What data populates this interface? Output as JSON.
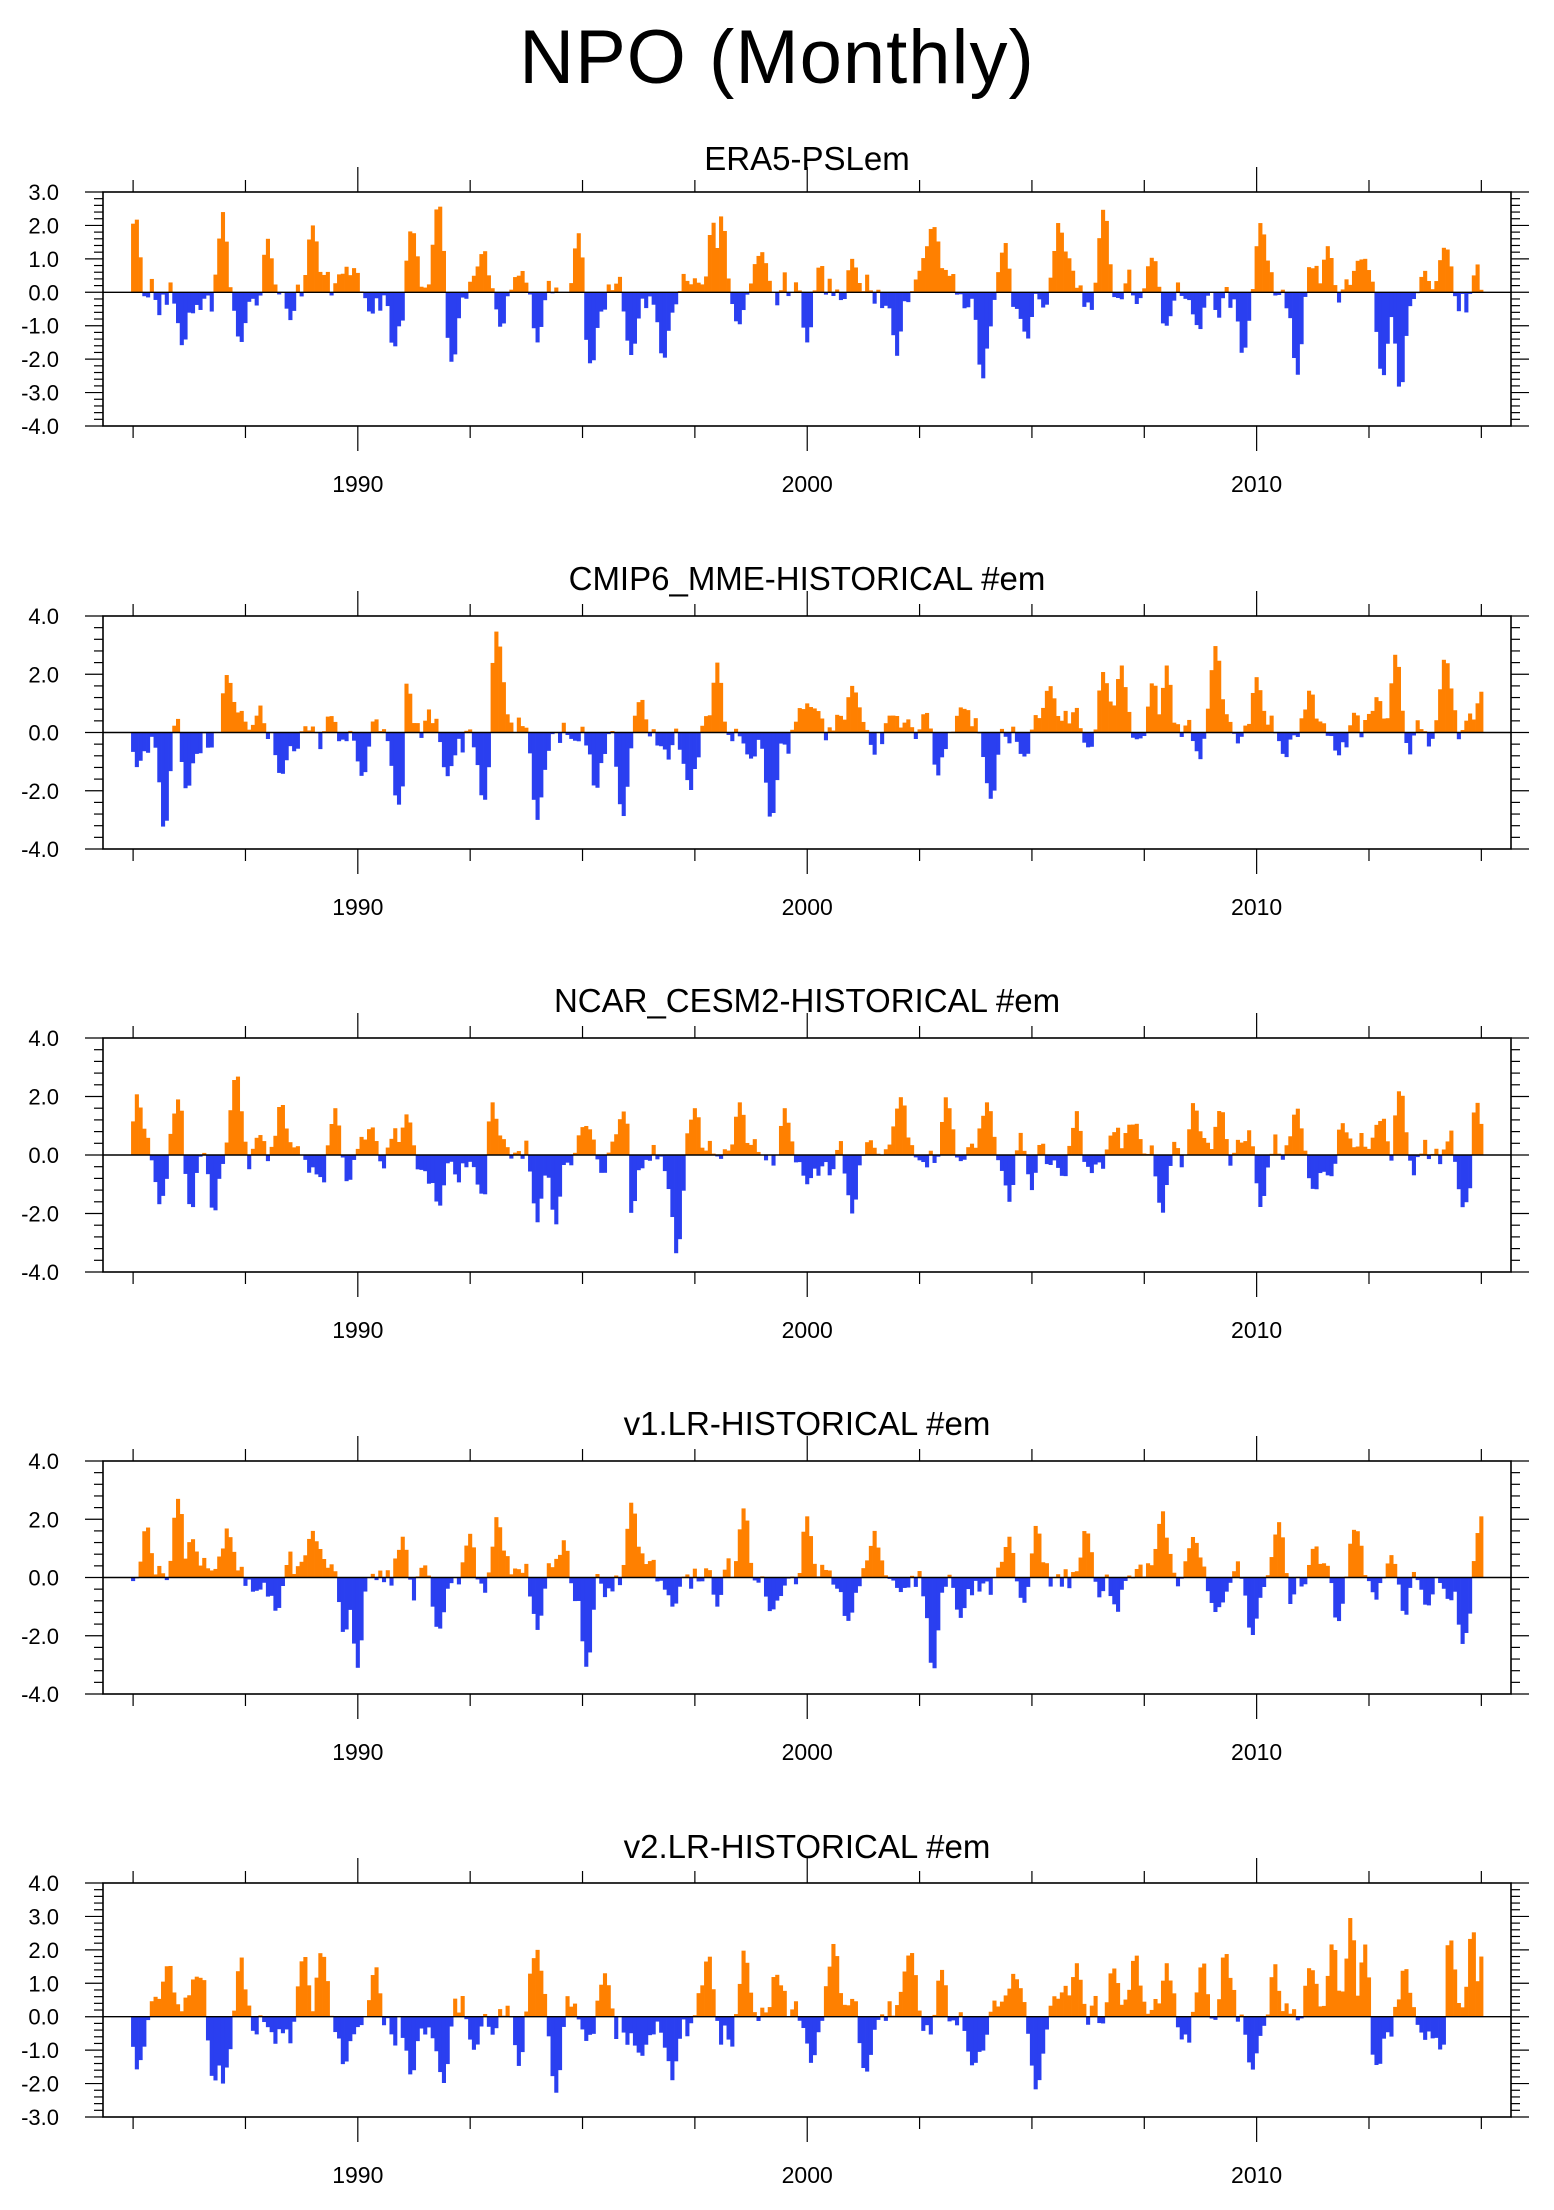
{
  "figure": {
    "title": "NPO (Monthly)",
    "colors": {
      "positive": "#ff8000",
      "negative": "#2a3ff0",
      "axis": "#000000"
    }
  },
  "chart_data": [
    {
      "type": "area",
      "title": "ERA5-PSLem",
      "x_start": 1985.0,
      "x_end": 2015.0,
      "xlim": [
        1984.33,
        2015.66
      ],
      "ylim": [
        -4.0,
        3.0
      ],
      "y_ticks": [
        3.0,
        2.0,
        1.0,
        0.0,
        -1.0,
        -2.0,
        -3.0,
        -4.0
      ],
      "y_tick_labels": [
        "3.0",
        "2.0",
        "1.0",
        "0.0",
        "-1.0",
        "-2.0",
        "-3.0",
        "-4.0"
      ],
      "x_ticks": [
        1990,
        2000,
        2010
      ],
      "x_tick_labels": [
        "1990",
        "2000",
        "2010"
      ],
      "seed": 11,
      "events": [
        [
          1985.05,
          2.3
        ],
        [
          1986.1,
          -1.6
        ],
        [
          1987.0,
          2.4
        ],
        [
          1987.4,
          -1.5
        ],
        [
          1988.0,
          1.6
        ],
        [
          1989.0,
          2.0
        ],
        [
          1990.8,
          -1.7
        ],
        [
          1991.2,
          1.9
        ],
        [
          1991.8,
          2.7
        ],
        [
          1992.1,
          -2.1
        ],
        [
          1992.8,
          1.3
        ],
        [
          1993.2,
          -1.1
        ],
        [
          1994.0,
          -1.5
        ],
        [
          1994.9,
          1.8
        ],
        [
          1995.2,
          -2.2
        ],
        [
          1996.1,
          -1.9
        ],
        [
          1996.8,
          -2.1
        ],
        [
          1997.9,
          2.1
        ],
        [
          1998.1,
          2.3
        ],
        [
          1999.0,
          1.2
        ],
        [
          2000.0,
          -1.5
        ],
        [
          2001.0,
          1.0
        ],
        [
          2002.0,
          -1.9
        ],
        [
          2002.8,
          2.0
        ],
        [
          2003.9,
          -2.6
        ],
        [
          2004.4,
          1.5
        ],
        [
          2004.9,
          -1.4
        ],
        [
          2005.6,
          2.1
        ],
        [
          2006.6,
          2.5
        ],
        [
          2007.7,
          1.1
        ],
        [
          2008.0,
          -1.0
        ],
        [
          2009.7,
          -1.9
        ],
        [
          2010.1,
          2.1
        ],
        [
          2010.9,
          -2.5
        ],
        [
          2011.6,
          1.4
        ],
        [
          2012.4,
          1.0
        ],
        [
          2012.8,
          -2.6
        ],
        [
          2013.2,
          -3.0
        ],
        [
          2014.2,
          1.4
        ]
      ]
    },
    {
      "type": "area",
      "title": "CMIP6_MME-HISTORICAL  #em",
      "x_start": 1985.0,
      "x_end": 2015.0,
      "xlim": [
        1984.33,
        2015.66
      ],
      "ylim": [
        -4.0,
        4.0
      ],
      "y_ticks": [
        4.0,
        2.0,
        0.0,
        -2.0,
        -4.0
      ],
      "y_tick_labels": [
        "4.0",
        "2.0",
        "0.0",
        "-2.0",
        "-4.0"
      ],
      "x_ticks": [
        1990,
        2000,
        2010
      ],
      "x_tick_labels": [
        "1990",
        "2000",
        "2010"
      ],
      "seed": 23,
      "events": [
        [
          1985.1,
          -1.2
        ],
        [
          1985.7,
          -3.4
        ],
        [
          1986.2,
          -2.0
        ],
        [
          1987.1,
          2.0
        ],
        [
          1988.3,
          -1.5
        ],
        [
          1990.1,
          -1.5
        ],
        [
          1990.9,
          -2.5
        ],
        [
          1991.1,
          1.7
        ],
        [
          1992.0,
          -1.5
        ],
        [
          1992.8,
          -2.4
        ],
        [
          1993.1,
          3.5
        ],
        [
          1994.0,
          -3.0
        ],
        [
          1995.3,
          -2.0
        ],
        [
          1995.9,
          -2.9
        ],
        [
          1996.3,
          1.2
        ],
        [
          1997.4,
          -2.0
        ],
        [
          1998.0,
          2.4
        ],
        [
          1999.2,
          -3.0
        ],
        [
          2000.0,
          1.0
        ],
        [
          2001.0,
          1.6
        ],
        [
          2002.9,
          -1.5
        ],
        [
          2004.1,
          -2.3
        ],
        [
          2005.4,
          1.6
        ],
        [
          2006.6,
          2.1
        ],
        [
          2007.0,
          2.3
        ],
        [
          2007.7,
          1.8
        ],
        [
          2008.0,
          2.3
        ],
        [
          2009.1,
          3.0
        ],
        [
          2010.0,
          1.9
        ],
        [
          2011.2,
          1.5
        ],
        [
          2012.7,
          1.3
        ],
        [
          2013.1,
          2.7
        ],
        [
          2014.2,
          2.6
        ],
        [
          2015.0,
          1.4
        ]
      ]
    },
    {
      "type": "area",
      "title": "NCAR_CESM2-HISTORICAL  #em",
      "x_start": 1985.0,
      "x_end": 2015.0,
      "xlim": [
        1984.33,
        2015.66
      ],
      "ylim": [
        -4.0,
        4.0
      ],
      "y_ticks": [
        4.0,
        2.0,
        0.0,
        -2.0,
        -4.0
      ],
      "y_tick_labels": [
        "4.0",
        "2.0",
        "0.0",
        "-2.0",
        "-4.0"
      ],
      "x_ticks": [
        1990,
        2000,
        2010
      ],
      "x_tick_labels": [
        "1990",
        "2000",
        "2010"
      ],
      "seed": 37,
      "events": [
        [
          1985.1,
          2.1
        ],
        [
          1985.6,
          -1.7
        ],
        [
          1986.0,
          1.9
        ],
        [
          1986.3,
          -1.9
        ],
        [
          1986.8,
          -2.0
        ],
        [
          1987.3,
          2.8
        ],
        [
          1988.3,
          1.8
        ],
        [
          1989.5,
          1.6
        ],
        [
          1990.3,
          1.0
        ],
        [
          1991.1,
          1.4
        ],
        [
          1991.8,
          -1.8
        ],
        [
          1992.8,
          -1.4
        ],
        [
          1993.0,
          1.8
        ],
        [
          1994.0,
          -2.3
        ],
        [
          1994.4,
          -2.4
        ],
        [
          1995.1,
          1.0
        ],
        [
          1995.9,
          1.5
        ],
        [
          1996.1,
          -2.0
        ],
        [
          1997.1,
          -3.4
        ],
        [
          1997.5,
          1.6
        ],
        [
          1998.5,
          1.8
        ],
        [
          1999.5,
          1.6
        ],
        [
          2000.0,
          -1.0
        ],
        [
          2001.0,
          -2.0
        ],
        [
          2002.1,
          2.0
        ],
        [
          2003.1,
          2.0
        ],
        [
          2004.0,
          1.8
        ],
        [
          2004.5,
          -1.6
        ],
        [
          2005.0,
          -1.2
        ],
        [
          2006.0,
          1.5
        ],
        [
          2007.3,
          1.1
        ],
        [
          2007.9,
          -2.0
        ],
        [
          2008.6,
          1.8
        ],
        [
          2009.2,
          1.6
        ],
        [
          2010.1,
          -1.8
        ],
        [
          2010.9,
          1.6
        ],
        [
          2011.3,
          -1.2
        ],
        [
          2011.9,
          1.1
        ],
        [
          2012.8,
          1.3
        ],
        [
          2013.2,
          2.3
        ],
        [
          2014.6,
          -1.8
        ],
        [
          2014.9,
          1.8
        ]
      ]
    },
    {
      "type": "area",
      "title": "v1.LR-HISTORICAL  #em",
      "x_start": 1985.0,
      "x_end": 2015.0,
      "xlim": [
        1984.33,
        2015.66
      ],
      "ylim": [
        -4.0,
        4.0
      ],
      "y_ticks": [
        4.0,
        2.0,
        0.0,
        -2.0,
        -4.0
      ],
      "y_tick_labels": [
        "4.0",
        "2.0",
        "0.0",
        "-2.0",
        "-4.0"
      ],
      "x_ticks": [
        1990,
        2000,
        2010
      ],
      "x_tick_labels": [
        "1990",
        "2000",
        "2010"
      ],
      "seed": 53,
      "events": [
        [
          1985.3,
          1.8
        ],
        [
          1986.0,
          2.7
        ],
        [
          1986.3,
          1.4
        ],
        [
          1987.1,
          1.7
        ],
        [
          1988.2,
          -1.2
        ],
        [
          1989.0,
          1.6
        ],
        [
          1989.7,
          -2.0
        ],
        [
          1990.0,
          -3.1
        ],
        [
          1991.0,
          1.4
        ],
        [
          1991.8,
          -1.8
        ],
        [
          1992.5,
          1.5
        ],
        [
          1993.1,
          2.1
        ],
        [
          1994.0,
          -1.8
        ],
        [
          1994.6,
          1.3
        ],
        [
          1995.1,
          -3.1
        ],
        [
          1996.1,
          2.6
        ],
        [
          1997.0,
          -1.0
        ],
        [
          1998.0,
          -1.0
        ],
        [
          1998.6,
          2.4
        ],
        [
          1999.2,
          -1.2
        ],
        [
          2000.0,
          2.1
        ],
        [
          2000.9,
          -1.5
        ],
        [
          2001.5,
          1.6
        ],
        [
          2002.8,
          -3.3
        ],
        [
          2003.4,
          -1.4
        ],
        [
          2004.5,
          1.4
        ],
        [
          2005.1,
          1.8
        ],
        [
          2006.2,
          1.7
        ],
        [
          2006.9,
          -1.2
        ],
        [
          2007.9,
          2.3
        ],
        [
          2008.6,
          1.4
        ],
        [
          2009.1,
          -1.2
        ],
        [
          2009.9,
          -2.0
        ],
        [
          2010.5,
          1.9
        ],
        [
          2011.3,
          1.1
        ],
        [
          2011.8,
          -1.6
        ],
        [
          2012.2,
          1.7
        ],
        [
          2013.3,
          -1.4
        ],
        [
          2013.8,
          -1.0
        ],
        [
          2014.6,
          -2.3
        ],
        [
          2015.0,
          2.1
        ]
      ]
    },
    {
      "type": "area",
      "title": "v2.LR-HISTORICAL  #em",
      "x_start": 1985.0,
      "x_end": 2015.0,
      "xlim": [
        1984.33,
        2015.66
      ],
      "ylim": [
        -3.0,
        4.0
      ],
      "y_ticks": [
        4.0,
        3.0,
        2.0,
        1.0,
        0.0,
        -1.0,
        -2.0,
        -3.0
      ],
      "y_tick_labels": [
        "4.0",
        "3.0",
        "2.0",
        "1.0",
        "0.0",
        "-1.0",
        "-2.0",
        "-3.0"
      ],
      "x_ticks": [
        1990,
        2000,
        2010
      ],
      "x_tick_labels": [
        "1990",
        "2000",
        "2010"
      ],
      "seed": 71,
      "events": [
        [
          1985.1,
          -1.6
        ],
        [
          1985.8,
          1.6
        ],
        [
          1986.4,
          1.2
        ],
        [
          1986.8,
          -2.0
        ],
        [
          1987.0,
          -2.0
        ],
        [
          1987.4,
          1.8
        ],
        [
          1988.8,
          1.9
        ],
        [
          1989.2,
          2.0
        ],
        [
          1989.7,
          -1.5
        ],
        [
          1990.4,
          1.5
        ],
        [
          1991.2,
          -1.8
        ],
        [
          1991.9,
          -2.0
        ],
        [
          1992.6,
          -1.0
        ],
        [
          1993.6,
          -1.5
        ],
        [
          1994.0,
          2.0
        ],
        [
          1994.4,
          -2.3
        ],
        [
          1995.5,
          1.3
        ],
        [
          1996.3,
          -1.2
        ],
        [
          1997.0,
          -1.9
        ],
        [
          1997.8,
          1.9
        ],
        [
          1998.6,
          2.0
        ],
        [
          1999.3,
          1.3
        ],
        [
          2000.1,
          -1.4
        ],
        [
          2000.6,
          2.2
        ],
        [
          2001.3,
          -1.7
        ],
        [
          2002.3,
          2.0
        ],
        [
          2003.0,
          1.4
        ],
        [
          2003.7,
          -1.5
        ],
        [
          2004.6,
          1.3
        ],
        [
          2005.1,
          -2.2
        ],
        [
          2006.0,
          1.6
        ],
        [
          2006.8,
          1.5
        ],
        [
          2007.3,
          1.9
        ],
        [
          2008.0,
          1.6
        ],
        [
          2008.8,
          1.7
        ],
        [
          2009.3,
          2.0
        ],
        [
          2009.9,
          -1.6
        ],
        [
          2010.4,
          1.6
        ],
        [
          2011.2,
          1.5
        ],
        [
          2011.7,
          2.3
        ],
        [
          2012.1,
          3.0
        ],
        [
          2012.4,
          2.2
        ],
        [
          2012.7,
          -1.5
        ],
        [
          2013.3,
          1.5
        ],
        [
          2014.1,
          -1.0
        ],
        [
          2014.3,
          2.4
        ],
        [
          2014.8,
          2.7
        ],
        [
          2015.0,
          1.8
        ]
      ]
    }
  ]
}
